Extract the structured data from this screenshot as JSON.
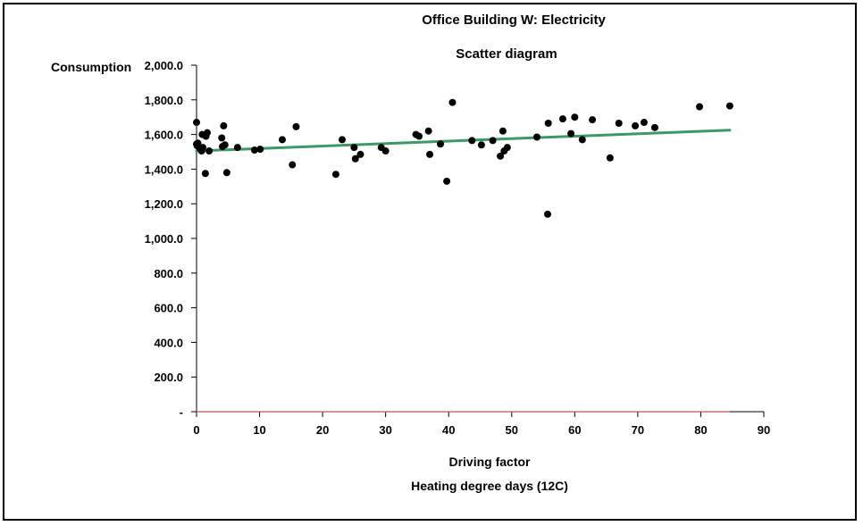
{
  "chart_data": {
    "type": "scatter",
    "title": "Office Building W: Electricity",
    "subtitle": "Scatter diagram",
    "ylabel": "Consumption",
    "xlabel": "Driving factor",
    "xlabel_secondary": "Heating degree days (12C)",
    "xlim": [
      0,
      90
    ],
    "ylim": [
      0,
      2000
    ],
    "xticks": [
      0,
      10,
      20,
      30,
      40,
      50,
      60,
      70,
      80,
      90
    ],
    "xtick_labels": [
      "0",
      "10",
      "20",
      "30",
      "40",
      "50",
      "60",
      "70",
      "80",
      "90"
    ],
    "yticks": [
      0,
      200,
      400,
      600,
      800,
      1000,
      1200,
      1400,
      1600,
      1800,
      2000
    ],
    "ytick_labels": [
      "-",
      "200.0",
      "400.0",
      "600.0",
      "800.0",
      "1,000.0",
      "1,200.0",
      "1,400.0",
      "1,600.0",
      "1,800.0",
      "2,000.0"
    ],
    "grid": false,
    "legend": "none",
    "points": [
      [
        0.0,
        1670
      ],
      [
        0.0,
        1545
      ],
      [
        0.1,
        1535
      ],
      [
        0.2,
        1550
      ],
      [
        0.3,
        1530
      ],
      [
        0.5,
        1520
      ],
      [
        0.8,
        1505
      ],
      [
        0.9,
        1600
      ],
      [
        1.0,
        1525
      ],
      [
        1.4,
        1375
      ],
      [
        1.5,
        1590
      ],
      [
        1.7,
        1610
      ],
      [
        2.0,
        1505
      ],
      [
        4.0,
        1580
      ],
      [
        4.1,
        1530
      ],
      [
        4.3,
        1650
      ],
      [
        4.5,
        1540
      ],
      [
        4.8,
        1380
      ],
      [
        6.5,
        1525
      ],
      [
        9.2,
        1510
      ],
      [
        10.1,
        1515
      ],
      [
        13.6,
        1570
      ],
      [
        15.2,
        1425
      ],
      [
        15.8,
        1645
      ],
      [
        22.1,
        1370
      ],
      [
        23.1,
        1570
      ],
      [
        25.0,
        1525
      ],
      [
        25.2,
        1460
      ],
      [
        26.0,
        1485
      ],
      [
        29.3,
        1525
      ],
      [
        30.0,
        1505
      ],
      [
        34.8,
        1600
      ],
      [
        35.3,
        1590
      ],
      [
        36.8,
        1620
      ],
      [
        37.0,
        1485
      ],
      [
        38.7,
        1545
      ],
      [
        39.7,
        1330
      ],
      [
        40.6,
        1785
      ],
      [
        43.7,
        1565
      ],
      [
        45.2,
        1540
      ],
      [
        47.0,
        1565
      ],
      [
        48.2,
        1475
      ],
      [
        48.6,
        1620
      ],
      [
        48.8,
        1505
      ],
      [
        49.3,
        1525
      ],
      [
        54.0,
        1585
      ],
      [
        55.7,
        1140
      ],
      [
        55.8,
        1665
      ],
      [
        58.1,
        1690
      ],
      [
        59.4,
        1605
      ],
      [
        60.0,
        1700
      ],
      [
        61.2,
        1570
      ],
      [
        62.8,
        1685
      ],
      [
        65.6,
        1465
      ],
      [
        67.0,
        1665
      ],
      [
        69.6,
        1650
      ],
      [
        71.0,
        1670
      ],
      [
        72.7,
        1640
      ],
      [
        79.8,
        1760
      ],
      [
        84.6,
        1765
      ]
    ],
    "trendline": {
      "x": [
        0,
        84.6
      ],
      "y": [
        1505,
        1625
      ],
      "color": "#3a9a65"
    },
    "colors": {
      "points": "#000000",
      "trendline": "#3a9a65",
      "baseline": "#c0504d",
      "axis": "#000000"
    }
  }
}
